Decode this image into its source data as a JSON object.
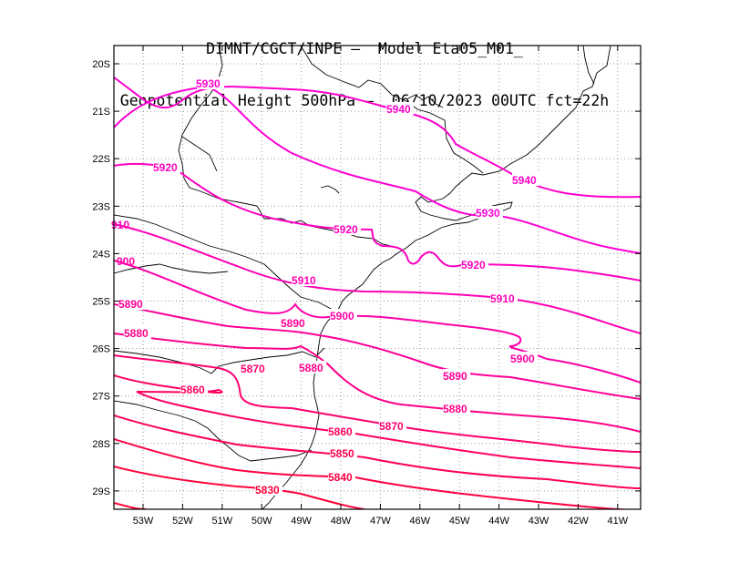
{
  "title": {
    "line1": "DIMNT/CGCT/INPE –  Model Eta05_M01_",
    "line2": "Geopotential Height 500hPa –  06/10/2023 00UTC fct=22h"
  },
  "axes": {
    "lat_labels": [
      "20S",
      "21S",
      "22S",
      "23S",
      "24S",
      "25S",
      "26S",
      "27S",
      "28S",
      "29S"
    ],
    "lon_labels": [
      "53W",
      "52W",
      "51W",
      "50W",
      "49W",
      "48W",
      "47W",
      "46W",
      "45W",
      "44W",
      "43W",
      "42W",
      "41W"
    ]
  },
  "colors": {
    "frame": "#000000",
    "grid": "#9a9a9a",
    "coast": "#000000",
    "contour_high": "#ff00cc",
    "contour_low": "#ff1a1a"
  },
  "contour_values": [
    "5940",
    "5930",
    "5920",
    "5910",
    "5900",
    "5890",
    "5880",
    "5870",
    "5860",
    "5850",
    "5840",
    "5830"
  ]
}
